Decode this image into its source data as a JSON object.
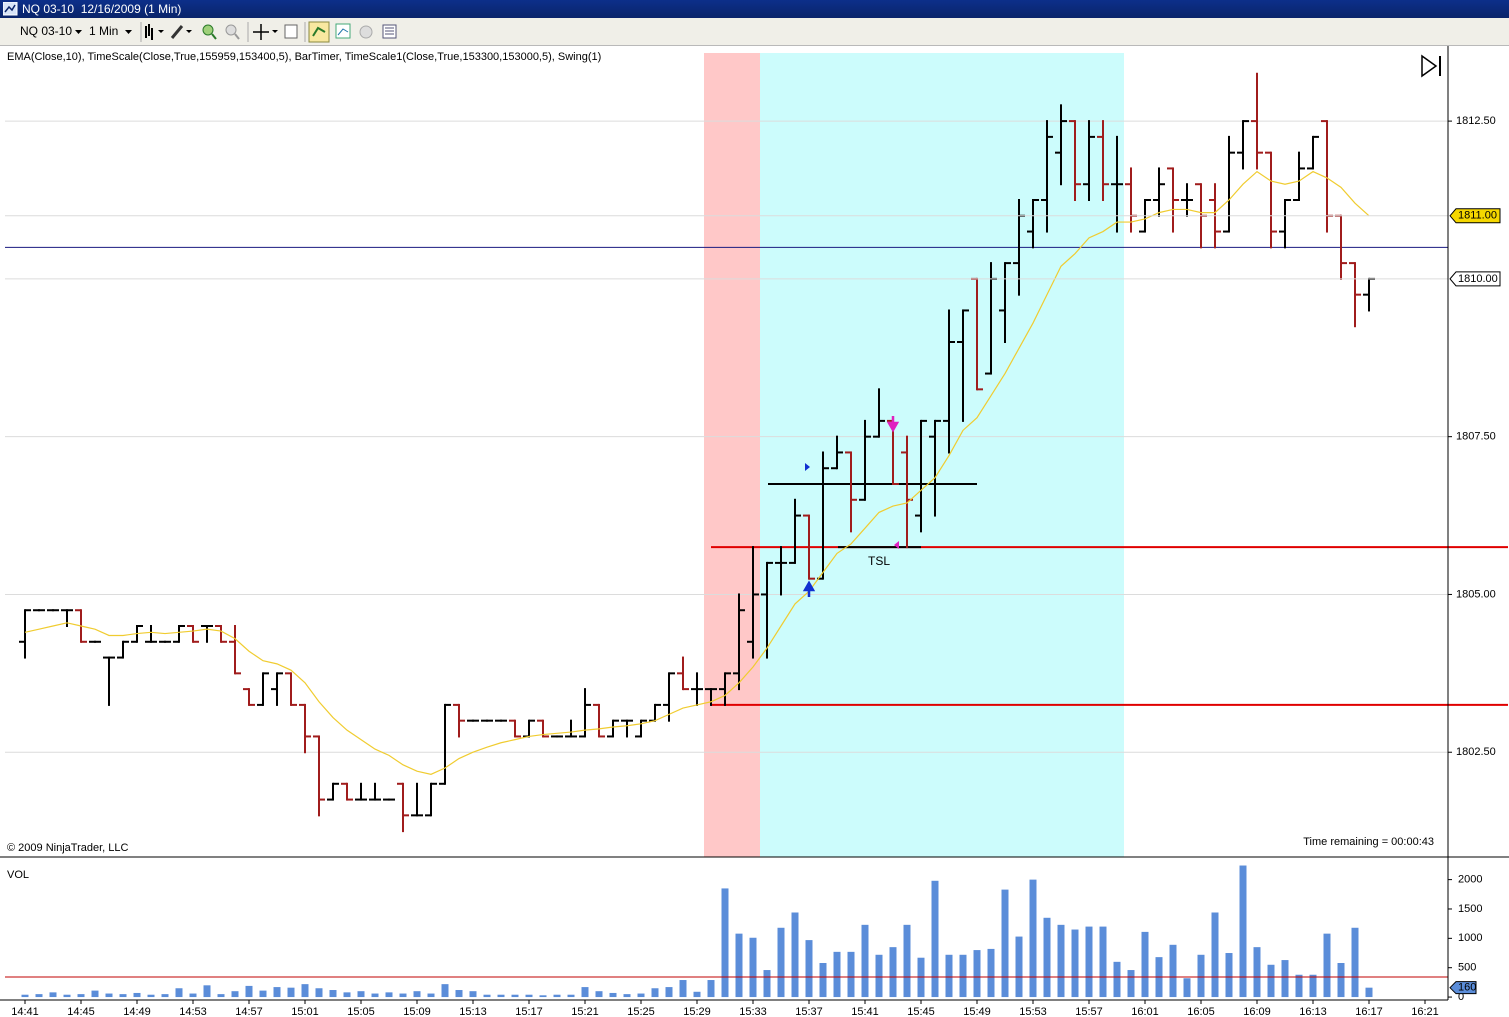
{
  "window": {
    "title": "NQ 03-10  12/16/2009 (1 Min)"
  },
  "toolbar": {
    "instrument": "NQ 03-10",
    "interval": "1 Min"
  },
  "chart_data": [
    {
      "type": "ohlc",
      "indicators": "EMA(Close,10), TimeScale(Close,True,155959,153400,5), BarTimer, TimeScale1(Close,True,153300,153000,5), Swing(1)",
      "copyright": "© 2009 NinjaTrader, LLC",
      "timer": "Time remaining = 00:00:43",
      "annotations": [
        "TSL"
      ],
      "up_color": "#000000",
      "down_color": "#a01c1c",
      "ylim": [
        1800.84,
        1813.69
      ],
      "yticks": [
        {
          "value": 1802.5,
          "label": "1802.50"
        },
        {
          "value": 1805,
          "label": "1805.00"
        },
        {
          "value": 1807.5,
          "label": "1807.50"
        },
        {
          "value": 1812.5,
          "label": "1812.50"
        }
      ],
      "grid": true,
      "markers": [
        {
          "value": 1811,
          "label": "1811.00",
          "color": "#f5d700"
        },
        {
          "value": 1810,
          "label": "1810.00",
          "color": "#ffffff"
        }
      ],
      "levels": [
        {
          "value": 1805.75,
          "color": "#e00000"
        },
        {
          "value": 1803.25,
          "color": "#e00000"
        },
        {
          "value": 1810.5,
          "color": "#1a1a80"
        },
        {
          "value": 1806.75,
          "color": "#000000"
        },
        {
          "value": 1805.75,
          "color": "#000000"
        }
      ],
      "categories": [
        "14:41",
        null,
        null,
        null,
        "14:45",
        null,
        null,
        null,
        "14:49",
        null,
        null,
        null,
        "14:53",
        null,
        null,
        null,
        "14:57",
        null,
        null,
        null,
        "15:01",
        null,
        null,
        null,
        "15:05",
        null,
        null,
        null,
        "15:09",
        null,
        null,
        null,
        "15:13",
        null,
        null,
        null,
        "15:17",
        null,
        null,
        null,
        "15:21",
        null,
        null,
        null,
        "15:25",
        null,
        null,
        null,
        "15:29",
        null,
        null,
        null,
        "15:33",
        null,
        null,
        null,
        "15:37",
        null,
        null,
        null,
        "15:41",
        null,
        null,
        null,
        "15:45",
        null,
        null,
        null,
        "15:49",
        null,
        null,
        null,
        "15:53",
        null,
        null,
        null,
        "15:57",
        null,
        null,
        null,
        "16:01",
        null,
        null,
        null,
        "16:05",
        null,
        null,
        null,
        "16:09",
        null,
        null,
        null,
        "16:13",
        null,
        null,
        null,
        "16:17",
        null,
        null,
        null,
        "16:21"
      ],
      "ohlc": [
        [
          1804.25,
          1804.75,
          1804.0,
          1804.75
        ],
        [
          1804.75,
          1804.75,
          1804.75,
          1804.75
        ],
        [
          1804.75,
          1804.75,
          1804.75,
          1804.75
        ],
        [
          1804.75,
          1804.75,
          1804.5,
          1804.75
        ],
        [
          1804.75,
          1804.75,
          1804.25,
          1804.25
        ],
        [
          1804.25,
          1804.25,
          1804.25,
          1804.25
        ],
        [
          1804.0,
          1804.0,
          1803.25,
          1804.0
        ],
        [
          1804.0,
          1804.25,
          1804.0,
          1804.25
        ],
        [
          1804.25,
          1804.5,
          1804.25,
          1804.5
        ],
        [
          1804.25,
          1804.5,
          1804.25,
          1804.25
        ],
        [
          1804.25,
          1804.25,
          1804.25,
          1804.25
        ],
        [
          1804.25,
          1804.5,
          1804.25,
          1804.5
        ],
        [
          1804.5,
          1804.5,
          1804.25,
          1804.25
        ],
        [
          1804.5,
          1804.5,
          1804.25,
          1804.5
        ],
        [
          1804.5,
          1804.5,
          1804.25,
          1804.25
        ],
        [
          1804.25,
          1804.5,
          1803.75,
          1803.75
        ],
        [
          1803.5,
          1803.5,
          1803.25,
          1803.25
        ],
        [
          1803.25,
          1803.75,
          1803.25,
          1803.75
        ],
        [
          1803.5,
          1803.75,
          1803.25,
          1803.75
        ],
        [
          1803.75,
          1803.75,
          1803.25,
          1803.25
        ],
        [
          1803.25,
          1803.25,
          1802.5,
          1802.75
        ],
        [
          1802.75,
          1802.75,
          1801.5,
          1801.75
        ],
        [
          1801.75,
          1802.0,
          1801.75,
          1802.0
        ],
        [
          1802.0,
          1802.0,
          1801.75,
          1801.75
        ],
        [
          1801.75,
          1802.0,
          1801.75,
          1801.75
        ],
        [
          1801.75,
          1802.0,
          1801.75,
          1801.75
        ],
        [
          1801.75,
          1801.75,
          1801.75,
          1801.75
        ],
        [
          1802.0,
          1802.0,
          1801.25,
          1801.5
        ],
        [
          1801.5,
          1802.0,
          1801.5,
          1801.5
        ],
        [
          1801.5,
          1802.0,
          1801.5,
          1802.0
        ],
        [
          1802.0,
          1803.25,
          1802.0,
          1803.25
        ],
        [
          1803.25,
          1803.25,
          1802.75,
          1803.0
        ],
        [
          1803.0,
          1803.0,
          1803.0,
          1803.0
        ],
        [
          1803.0,
          1803.0,
          1803.0,
          1803.0
        ],
        [
          1803.0,
          1803.0,
          1803.0,
          1803.0
        ],
        [
          1803.0,
          1803.0,
          1802.75,
          1802.75
        ],
        [
          1802.75,
          1803.0,
          1802.75,
          1803.0
        ],
        [
          1803.0,
          1803.0,
          1802.75,
          1802.75
        ],
        [
          1802.75,
          1802.75,
          1802.75,
          1802.75
        ],
        [
          1802.75,
          1803.0,
          1802.75,
          1802.75
        ],
        [
          1802.75,
          1803.5,
          1802.75,
          1803.25
        ],
        [
          1803.25,
          1803.25,
          1802.75,
          1802.75
        ],
        [
          1802.75,
          1803.0,
          1802.75,
          1803.0
        ],
        [
          1803.0,
          1803.0,
          1802.75,
          1803.0
        ],
        [
          1802.75,
          1803.0,
          1802.75,
          1803.0
        ],
        [
          1803.0,
          1803.25,
          1803.0,
          1803.25
        ],
        [
          1803.25,
          1803.75,
          1803.0,
          1803.75
        ],
        [
          1803.75,
          1804.0,
          1803.5,
          1803.5
        ],
        [
          1803.5,
          1803.75,
          1803.25,
          1803.5
        ],
        [
          1803.5,
          1803.5,
          1803.25,
          1803.5
        ],
        [
          1803.5,
          1803.75,
          1803.25,
          1803.75
        ],
        [
          1803.75,
          1805.0,
          1803.5,
          1804.75
        ],
        [
          1804.25,
          1805.75,
          1804.0,
          1805.0
        ],
        [
          1805.0,
          1805.5,
          1804.0,
          1805.5
        ],
        [
          1805.5,
          1805.75,
          1805.0,
          1805.5
        ],
        [
          1805.5,
          1806.5,
          1805.5,
          1806.25
        ],
        [
          1806.25,
          1806.25,
          1805.25,
          1805.25
        ],
        [
          1805.25,
          1807.25,
          1805.25,
          1807.0
        ],
        [
          1807.0,
          1807.5,
          1807.0,
          1807.25
        ],
        [
          1807.25,
          1807.25,
          1806.0,
          1806.5
        ],
        [
          1806.5,
          1807.75,
          1806.5,
          1807.5
        ],
        [
          1807.5,
          1808.25,
          1807.5,
          1807.75
        ],
        [
          1807.75,
          1807.75,
          1806.75,
          1806.75
        ],
        [
          1807.25,
          1807.5,
          1805.75,
          1806.5
        ],
        [
          1806.25,
          1807.75,
          1806.0,
          1807.75
        ],
        [
          1807.5,
          1807.75,
          1806.25,
          1807.75
        ],
        [
          1807.75,
          1809.5,
          1807.25,
          1809.0
        ],
        [
          1809.0,
          1809.5,
          1807.75,
          1809.5
        ],
        [
          1810.0,
          1810.0,
          1808.25,
          1808.25
        ],
        [
          1808.5,
          1810.25,
          1808.5,
          1810.0
        ],
        [
          1809.5,
          1810.25,
          1809.0,
          1810.25
        ],
        [
          1810.25,
          1811.25,
          1809.75,
          1811.0
        ],
        [
          1810.75,
          1811.25,
          1810.5,
          1811.25
        ],
        [
          1811.25,
          1812.5,
          1810.75,
          1812.25
        ],
        [
          1812.0,
          1812.75,
          1811.5,
          1812.5
        ],
        [
          1812.5,
          1812.5,
          1811.25,
          1811.5
        ],
        [
          1811.5,
          1812.5,
          1811.25,
          1812.25
        ],
        [
          1812.25,
          1812.5,
          1811.25,
          1811.5
        ],
        [
          1811.5,
          1812.25,
          1810.75,
          1811.5
        ],
        [
          1811.5,
          1811.75,
          1810.75,
          1811.0
        ],
        [
          1810.75,
          1811.25,
          1810.75,
          1811.25
        ],
        [
          1811.25,
          1811.75,
          1811.0,
          1811.5
        ],
        [
          1811.75,
          1811.75,
          1810.75,
          1811.25
        ],
        [
          1811.25,
          1811.5,
          1811.0,
          1811.25
        ],
        [
          1811.5,
          1811.5,
          1810.5,
          1811.0
        ],
        [
          1811.25,
          1811.5,
          1810.5,
          1810.75
        ],
        [
          1810.75,
          1812.25,
          1810.75,
          1812.0
        ],
        [
          1812.0,
          1812.5,
          1811.75,
          1812.5
        ],
        [
          1812.5,
          1813.25,
          1811.75,
          1812.0
        ],
        [
          1812.0,
          1812.0,
          1810.5,
          1810.75
        ],
        [
          1810.75,
          1811.25,
          1810.5,
          1811.25
        ],
        [
          1811.25,
          1812.0,
          1811.25,
          1811.75
        ],
        [
          1811.75,
          1812.25,
          1811.75,
          1812.25
        ],
        [
          1812.5,
          1812.5,
          1810.75,
          1811.0
        ],
        [
          1811.0,
          1811.0,
          1810.0,
          1810.25
        ],
        [
          1810.25,
          1810.25,
          1809.25,
          1809.75
        ],
        [
          1809.75,
          1810.0,
          1809.5,
          1810.0
        ],
        null,
        null,
        null,
        null
      ],
      "series": [
        {
          "name": "EMA(Close,10)",
          "color": "#f0cc30",
          "values": [
            1804.4,
            1804.45,
            1804.5,
            1804.55,
            1804.5,
            1804.45,
            1804.35,
            1804.35,
            1804.38,
            1804.4,
            1804.38,
            1804.4,
            1804.42,
            1804.45,
            1804.42,
            1804.3,
            1804.1,
            1803.95,
            1803.9,
            1803.8,
            1803.6,
            1803.3,
            1803.05,
            1802.85,
            1802.7,
            1802.55,
            1802.45,
            1802.3,
            1802.2,
            1802.15,
            1802.25,
            1802.4,
            1802.5,
            1802.58,
            1802.65,
            1802.7,
            1802.75,
            1802.78,
            1802.8,
            1802.82,
            1802.85,
            1802.87,
            1802.9,
            1802.92,
            1802.95,
            1803.0,
            1803.1,
            1803.2,
            1803.25,
            1803.3,
            1803.4,
            1803.6,
            1803.85,
            1804.15,
            1804.5,
            1804.85,
            1805.05,
            1805.35,
            1805.65,
            1805.8,
            1806.05,
            1806.3,
            1806.4,
            1806.45,
            1806.65,
            1806.85,
            1807.2,
            1807.6,
            1807.8,
            1808.15,
            1808.5,
            1808.9,
            1809.3,
            1809.75,
            1810.2,
            1810.4,
            1810.65,
            1810.75,
            1810.9,
            1810.9,
            1810.95,
            1811.05,
            1811.1,
            1811.1,
            1811.05,
            1811.05,
            1811.25,
            1811.5,
            1811.7,
            1811.55,
            1811.5,
            1811.55,
            1811.7,
            1811.6,
            1811.45,
            1811.2,
            1811.0,
            null,
            null,
            null,
            null
          ]
        }
      ]
    },
    {
      "type": "bar",
      "title": "VOL",
      "color": "#5b8dd9",
      "ylim": [
        -50,
        2300
      ],
      "yticks": [
        0,
        500,
        1000,
        1500,
        2000
      ],
      "average": {
        "value": 342,
        "color": "#c00000"
      },
      "marker": {
        "value": 160,
        "color": "#5b8dd9"
      },
      "values": [
        40,
        50,
        80,
        40,
        50,
        110,
        60,
        50,
        70,
        40,
        50,
        150,
        60,
        200,
        50,
        100,
        190,
        110,
        170,
        160,
        220,
        150,
        120,
        80,
        100,
        60,
        80,
        60,
        100,
        60,
        220,
        120,
        100,
        40,
        40,
        40,
        40,
        30,
        40,
        40,
        170,
        100,
        70,
        50,
        60,
        150,
        170,
        290,
        90,
        290,
        1850,
        1080,
        1010,
        460,
        1180,
        1440,
        970,
        580,
        770,
        770,
        1230,
        720,
        850,
        1230,
        670,
        1980,
        720,
        720,
        800,
        820,
        1830,
        1030,
        2000,
        1350,
        1230,
        1150,
        1200,
        1200,
        600,
        460,
        1110,
        680,
        890,
        320,
        720,
        1440,
        750,
        2240,
        850,
        550,
        630,
        380,
        380,
        1080,
        580,
        1180,
        160,
        null,
        null,
        null,
        null
      ]
    }
  ]
}
